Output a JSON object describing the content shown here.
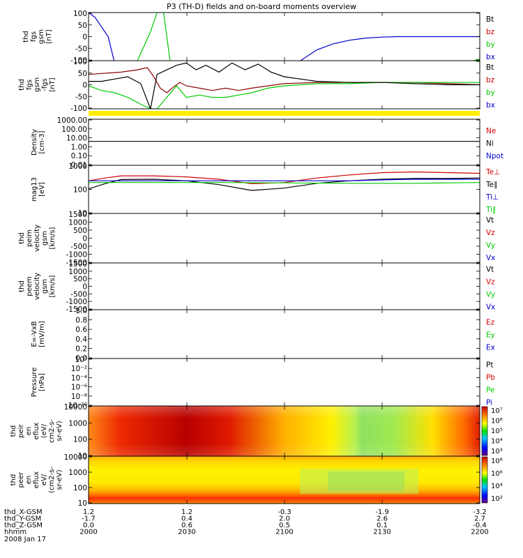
{
  "title": "P3 (TH-D) fields and on-board moments overview",
  "colors": {
    "black": "#000000",
    "red": "#cc0000",
    "darkred": "#8b0000",
    "green": "#00cc00",
    "blue": "#0000cc",
    "yellow": "#ffee00"
  },
  "chart_data": [
    {
      "type": "line",
      "name": "fgs",
      "ylabel": [
        "thd",
        "fgs",
        "gsm",
        "[nT]"
      ],
      "yticks": [
        "100",
        "50",
        "0",
        "-50",
        "-100"
      ],
      "ylim": [
        -100,
        100
      ],
      "legend": [
        {
          "label": "Bt",
          "color": "black"
        },
        {
          "label": "bz",
          "color": "red"
        },
        {
          "label": "by",
          "color": "green"
        },
        {
          "label": "bx",
          "color": "blue"
        }
      ],
      "x_minutes": [
        0,
        120
      ],
      "series": [
        {
          "name": "bx",
          "color": "blue",
          "x": [
            0,
            2,
            4,
            6,
            8
          ],
          "y": [
            100,
            80,
            40,
            0,
            -110
          ]
        },
        {
          "name": "bx",
          "color": "blue",
          "x": [
            65,
            70,
            75,
            80,
            85,
            90,
            95,
            100,
            105,
            110,
            120
          ],
          "y": [
            -100,
            -55,
            -30,
            -15,
            -6,
            -2,
            0,
            0,
            0,
            0,
            0
          ]
        },
        {
          "name": "by",
          "color": "green",
          "x": [
            15,
            17,
            19,
            20,
            21
          ],
          "y": [
            -100,
            -40,
            20,
            60,
            100
          ]
        },
        {
          "name": "by",
          "color": "green",
          "x": [
            23,
            24,
            25
          ],
          "y": [
            100,
            0,
            -100
          ]
        },
        {
          "name": "by",
          "color": "green",
          "x": [
            118,
            120
          ],
          "y": [
            -100,
            -93
          ]
        }
      ]
    },
    {
      "type": "line",
      "name": "fgl",
      "ylabel": [
        "thd",
        "fgs",
        "gsm",
        "-fgs",
        "[nT]"
      ],
      "yticks": [
        "100",
        "50",
        "0",
        "-50",
        "-100"
      ],
      "ylim": [
        -110,
        100
      ],
      "legend": [
        {
          "label": "Bt",
          "color": "black"
        },
        {
          "label": "bz",
          "color": "red"
        },
        {
          "label": "by",
          "color": "green"
        },
        {
          "label": "bx",
          "color": "blue"
        }
      ],
      "series": [
        {
          "name": "bz",
          "color": "darkred",
          "x": [
            0,
            10,
            15,
            18,
            20,
            22,
            24,
            26,
            28,
            30,
            34,
            38,
            42,
            46,
            50,
            55,
            60,
            70,
            80,
            90,
            100,
            110,
            120
          ],
          "y": [
            40,
            50,
            60,
            70,
            30,
            -20,
            -40,
            -15,
            5,
            -10,
            -20,
            -30,
            -20,
            -30,
            -20,
            -10,
            0,
            5,
            5,
            5,
            5,
            0,
            -5
          ]
        },
        {
          "name": "by",
          "color": "green",
          "x": [
            0,
            4,
            8,
            12,
            16,
            19,
            21,
            24,
            27,
            30,
            34,
            38,
            42,
            46,
            50,
            55,
            60,
            70,
            80,
            90,
            100,
            110,
            120
          ],
          "y": [
            -10,
            -30,
            -40,
            -60,
            -90,
            -110,
            -110,
            -60,
            -10,
            -60,
            -50,
            -60,
            -60,
            -50,
            -40,
            -20,
            -10,
            0,
            0,
            5,
            5,
            5,
            5
          ]
        },
        {
          "name": "Bt",
          "color": "black",
          "x": [
            0,
            4,
            8,
            12,
            16,
            19,
            21,
            24,
            27,
            30,
            33,
            36,
            40,
            44,
            48,
            52,
            56,
            60,
            65,
            70,
            80,
            90,
            100,
            110,
            120
          ],
          "y": [
            10,
            10,
            20,
            30,
            0,
            -110,
            40,
            60,
            80,
            90,
            60,
            80,
            50,
            90,
            60,
            85,
            50,
            30,
            20,
            10,
            5,
            5,
            0,
            -5,
            -5
          ]
        }
      ]
    },
    {
      "type": "line",
      "name": "density",
      "ylabel": [
        "Density",
        "[cm-3]"
      ],
      "yticks": [
        "1000.00",
        "100.00",
        "10.00",
        "1.00",
        "0.10",
        "0.01"
      ],
      "ylim": [
        0.01,
        1000
      ],
      "ylog": true,
      "legend": [
        {
          "label": "Ne",
          "color": "red"
        },
        {
          "label": "Ni",
          "color": "black"
        },
        {
          "label": "Npot",
          "color": "blue"
        }
      ],
      "series": [
        {
          "name": "Ni",
          "color": "black",
          "x": [
            0,
            120
          ],
          "y": [
            4,
            4
          ]
        }
      ]
    },
    {
      "type": "line",
      "name": "temperature",
      "ylabel": [
        "mag13",
        "[eV]"
      ],
      "yticks": [
        "1000",
        "100",
        "10"
      ],
      "ylim": [
        10,
        1500
      ],
      "ylog": true,
      "legend": [
        {
          "label": "Te⊥",
          "color": "red"
        },
        {
          "label": "Te∥",
          "color": "black"
        },
        {
          "label": "Ti⊥",
          "color": "blue"
        },
        {
          "label": "Ti∥",
          "color": "green"
        }
      ],
      "series": [
        {
          "name": "Te⊥",
          "color": "red",
          "x": [
            0,
            5,
            10,
            20,
            30,
            40,
            50,
            60,
            70,
            80,
            90,
            100,
            110,
            120
          ],
          "y": [
            300,
            400,
            500,
            500,
            450,
            350,
            220,
            250,
            400,
            550,
            700,
            750,
            700,
            650
          ]
        },
        {
          "name": "Te∥",
          "color": "black",
          "x": [
            0,
            5,
            10,
            20,
            30,
            40,
            50,
            60,
            70,
            80,
            90,
            100,
            110,
            120
          ],
          "y": [
            130,
            220,
            340,
            350,
            300,
            200,
            110,
            140,
            230,
            300,
            350,
            380,
            380,
            400
          ]
        },
        {
          "name": "Ti⊥",
          "color": "blue",
          "x": [
            0,
            20,
            40,
            60,
            80,
            90,
            100,
            110,
            120
          ],
          "y": [
            300,
            300,
            300,
            300,
            300,
            330,
            350,
            350,
            350
          ]
        },
        {
          "name": "Ti∥",
          "color": "green",
          "x": [
            0,
            20,
            40,
            60,
            80,
            90,
            100,
            110,
            120
          ],
          "y": [
            250,
            250,
            250,
            240,
            230,
            230,
            230,
            240,
            250
          ]
        }
      ]
    },
    {
      "type": "line",
      "name": "ion velocity",
      "ylabel": [
        "thd",
        "peim",
        "velocity",
        "gsm",
        "[km/s]"
      ],
      "yticks": [
        "1500",
        "1000",
        "500",
        "0",
        "-500",
        "-1000",
        "-1500"
      ],
      "ylim": [
        -1500,
        1500
      ],
      "legend": [
        {
          "label": "Vt",
          "color": "black"
        },
        {
          "label": "Vz",
          "color": "red"
        },
        {
          "label": "Vy",
          "color": "green"
        },
        {
          "label": "Vx",
          "color": "blue"
        }
      ],
      "series": []
    },
    {
      "type": "line",
      "name": "electron velocity",
      "ylabel": [
        "thd",
        "peem",
        "velocity",
        "gsm",
        "[km/s]"
      ],
      "yticks": [
        "1500",
        "1000",
        "500",
        "0",
        "-500",
        "-1000",
        "-1500"
      ],
      "ylim": [
        -1500,
        1500
      ],
      "legend": [
        {
          "label": "Vt",
          "color": "black"
        },
        {
          "label": "Vz",
          "color": "red"
        },
        {
          "label": "Vy",
          "color": "green"
        },
        {
          "label": "Vx",
          "color": "blue"
        }
      ],
      "series": []
    },
    {
      "type": "line",
      "name": "efield",
      "ylabel": [
        "E=-VxB",
        "[mV/m]"
      ],
      "yticks": [
        "1.0",
        "0.8",
        "0.6",
        "0.4",
        "0.2",
        "0.0"
      ],
      "ylim": [
        0,
        1
      ],
      "legend": [
        {
          "label": "Ez",
          "color": "red"
        },
        {
          "label": "Ey",
          "color": "green"
        },
        {
          "label": "Ex",
          "color": "blue"
        }
      ],
      "series": []
    },
    {
      "type": "line",
      "name": "pressure",
      "ylabel": [
        "Pressure",
        "[nPa]"
      ],
      "yticks": [
        "10⁰",
        "10⁻²",
        "10⁻⁴",
        "10⁻⁶",
        "10⁻⁸",
        "10⁻¹⁰"
      ],
      "ylim": [
        1e-10,
        1
      ],
      "ylog": true,
      "legend": [
        {
          "label": "Pt",
          "color": "black"
        },
        {
          "label": "Pb",
          "color": "red"
        },
        {
          "label": "Pe",
          "color": "green"
        },
        {
          "label": "Pi",
          "color": "blue"
        }
      ],
      "series": []
    },
    {
      "type": "heatmap",
      "name": "ion energy flux",
      "ylabel": [
        "thd",
        "peir",
        "en",
        "eflux",
        "(eV/",
        "cm2-s-",
        "sr-eV)"
      ],
      "yticks": [
        "10000",
        "1000",
        "100",
        "10"
      ],
      "ylim": [
        5,
        25000
      ],
      "ylog": true,
      "colorbar_ticks": [
        "10⁷",
        "10⁶",
        "10⁵",
        "10⁴",
        "10³"
      ]
    },
    {
      "type": "heatmap",
      "name": "electron energy flux",
      "ylabel": [
        "thd",
        "peer",
        "en",
        "eflux",
        "eV/",
        "(cm2-s-",
        "sr-eV)"
      ],
      "yticks": [
        "10000",
        "1000",
        "100",
        "10"
      ],
      "ylim": [
        5,
        25000
      ],
      "ylog": true,
      "colorbar_ticks": [
        "10⁸",
        "10⁶",
        "10⁴",
        "10²"
      ]
    }
  ],
  "x_axis": {
    "rows": [
      {
        "label": "thd_X-GSM",
        "values": [
          "1.2",
          "1.2",
          "-0.3",
          "-1.9",
          "-3.2"
        ]
      },
      {
        "label": "thd_Y-GSM",
        "values": [
          "-1.7",
          "0.4",
          "2.0",
          "2.6",
          "2.7"
        ]
      },
      {
        "label": "thd_Z-GSM",
        "values": [
          "0.0",
          "0.6",
          "0.5",
          "0.1",
          "-0.4"
        ]
      },
      {
        "label": "hhmm",
        "values": [
          "2000",
          "2030",
          "2100",
          "2130",
          "2200"
        ]
      }
    ],
    "date": "2008 Jan 17"
  }
}
